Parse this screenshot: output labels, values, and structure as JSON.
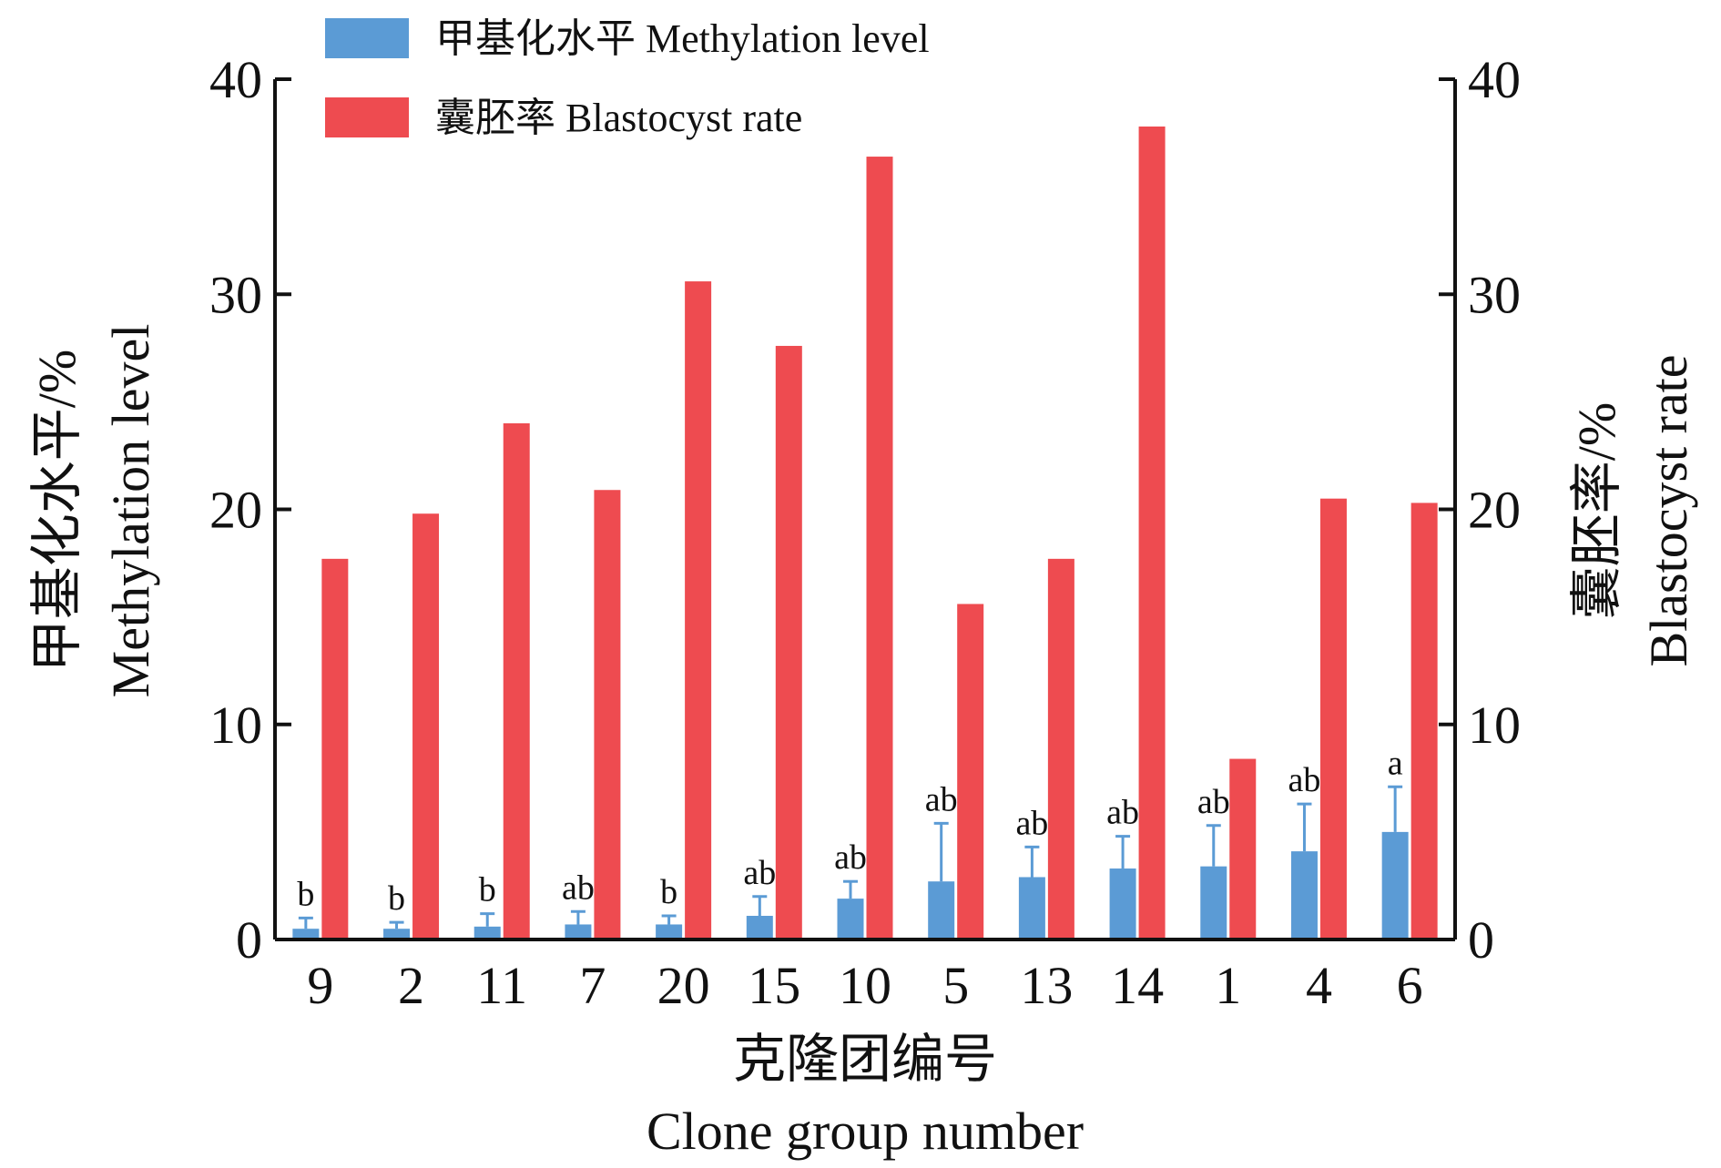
{
  "chart_data": {
    "type": "bar",
    "categories": [
      "9",
      "2",
      "11",
      "7",
      "20",
      "15",
      "10",
      "5",
      "13",
      "14",
      "1",
      "4",
      "6"
    ],
    "series": [
      {
        "name": "甲基化水平 Methylation level",
        "axis": "left",
        "color": "#5b9bd5",
        "values": [
          0.5,
          0.5,
          0.6,
          0.7,
          0.7,
          1.1,
          1.9,
          2.7,
          2.9,
          3.3,
          3.4,
          4.1,
          5.0
        ],
        "error": [
          0.5,
          0.3,
          0.6,
          0.6,
          0.4,
          0.9,
          0.8,
          2.7,
          1.4,
          1.5,
          1.9,
          2.2,
          2.1
        ],
        "significance": [
          "b",
          "b",
          "b",
          "ab",
          "b",
          "ab",
          "ab",
          "ab",
          "ab",
          "ab",
          "ab",
          "ab",
          "a"
        ]
      },
      {
        "name": "囊胚率 Blastocyst rate",
        "axis": "right",
        "color": "#ee4b50",
        "values": [
          17.7,
          19.8,
          24.0,
          20.9,
          30.6,
          27.6,
          36.4,
          15.6,
          17.7,
          37.8,
          8.4,
          20.5,
          20.3
        ]
      }
    ],
    "ylim_left": [
      0,
      40
    ],
    "ylim_right": [
      0,
      40
    ],
    "yticks": [
      "0",
      "10",
      "20",
      "30",
      "40"
    ],
    "ylabel_left": [
      "甲基化水平/%",
      "Methylation level"
    ],
    "ylabel_right": [
      "囊胚率/%",
      "Blastocyst rate"
    ],
    "xlabel": [
      "克隆团编号",
      "Clone group number"
    ],
    "legend_position": "top-left",
    "grid": false
  }
}
